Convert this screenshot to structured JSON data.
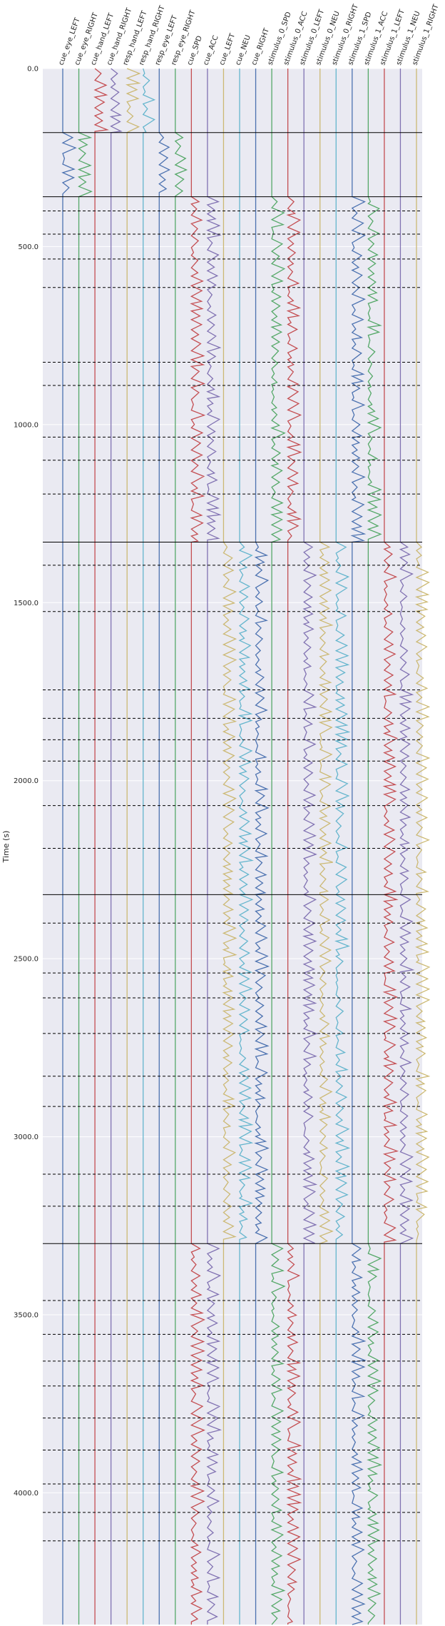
{
  "chart_data": {
    "type": "line",
    "title": "",
    "xlabel": "",
    "ylabel": "Time (s)",
    "ylim": [
      0,
      4370
    ],
    "y_inverted": true,
    "grid": true,
    "background": "#eaeaf2",
    "yticks": [
      0,
      500,
      1000,
      1500,
      2000,
      2500,
      3000,
      3500,
      4000
    ],
    "ytick_labels": [
      "0.0",
      "500.0",
      "1000.0",
      "1500.0",
      "2000.0",
      "2500.0",
      "3000.0",
      "3500.0",
      "4000.0"
    ],
    "channels": [
      {
        "name": "cue_eye_LEFT",
        "color": "#4c72b0"
      },
      {
        "name": "cue_eye_RIGHT",
        "color": "#55a868"
      },
      {
        "name": "cue_hand_LEFT",
        "color": "#c44e52"
      },
      {
        "name": "cue_hand_RIGHT",
        "color": "#8172b2"
      },
      {
        "name": "resp_hand_LEFT",
        "color": "#ccb974"
      },
      {
        "name": "resp_hand_RIGHT",
        "color": "#64b5cd"
      },
      {
        "name": "resp_eye_LEFT",
        "color": "#4c72b0"
      },
      {
        "name": "resp_eye_RIGHT",
        "color": "#55a868"
      },
      {
        "name": "cue_SPD",
        "color": "#c44e52"
      },
      {
        "name": "cue_ACC",
        "color": "#8172b2"
      },
      {
        "name": "cue_LEFT",
        "color": "#ccb974"
      },
      {
        "name": "cue_NEU",
        "color": "#64b5cd"
      },
      {
        "name": "cue_RIGHT",
        "color": "#4c72b0"
      },
      {
        "name": "stimulus_0_SPD",
        "color": "#55a868"
      },
      {
        "name": "stimulus_0_ACC",
        "color": "#c44e52"
      },
      {
        "name": "stimulus_0_LEFT",
        "color": "#8172b2"
      },
      {
        "name": "stimulus_0_NEU",
        "color": "#ccb974"
      },
      {
        "name": "stimulus_0_RIGHT",
        "color": "#64b5cd"
      },
      {
        "name": "stimulus_1_SPD",
        "color": "#4c72b0"
      },
      {
        "name": "stimulus_1_ACC",
        "color": "#55a868"
      },
      {
        "name": "stimulus_1_LEFT",
        "color": "#c44e52"
      },
      {
        "name": "stimulus_1_NEU",
        "color": "#8172b2"
      },
      {
        "name": "stimulus_1_RIGHT",
        "color": "#ccb974"
      }
    ],
    "run_boundaries_solid": [
      180,
      360,
      1330,
      2320,
      3300
    ],
    "run_boundaries_dashed": [
      400,
      465,
      535,
      615,
      825,
      890,
      1035,
      1100,
      1195,
      1395,
      1525,
      1745,
      1825,
      1885,
      1945,
      2070,
      2190,
      2400,
      2540,
      2610,
      2710,
      2830,
      2915,
      3105,
      3195,
      3460,
      3555,
      3630,
      3700,
      3790,
      3880,
      3975,
      4055,
      4135
    ],
    "active_segments": [
      {
        "channels": [
          2,
          3,
          4,
          5
        ],
        "start": 0,
        "end": 180
      },
      {
        "channels": [
          0,
          1,
          6,
          7
        ],
        "start": 180,
        "end": 360
      },
      {
        "channels": [
          8,
          9,
          13,
          14,
          18,
          19
        ],
        "start": 360,
        "end": 1330
      },
      {
        "channels": [
          10,
          11,
          12,
          15,
          16,
          17,
          20,
          21,
          22
        ],
        "start": 1330,
        "end": 2320
      },
      {
        "channels": [
          10,
          11,
          12,
          15,
          16,
          17,
          20,
          21,
          22
        ],
        "start": 2320,
        "end": 3300
      },
      {
        "channels": [
          8,
          9,
          13,
          14,
          18,
          19
        ],
        "start": 3300,
        "end": 4370
      }
    ]
  }
}
